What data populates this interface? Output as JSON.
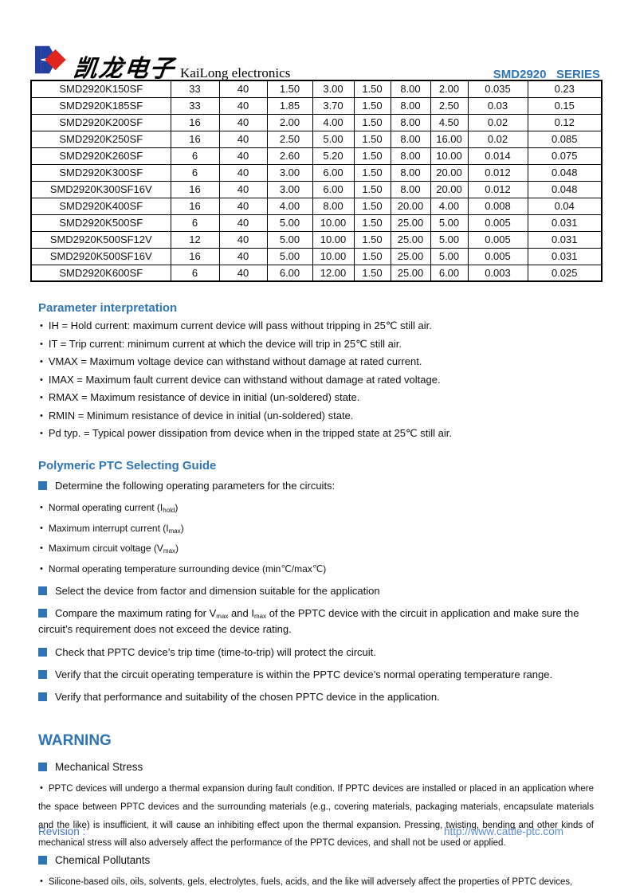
{
  "header": {
    "logo_chinese": "凯龙电子",
    "logo_english": "KaiLong electronics",
    "series_label": "SMD2920   SERIES",
    "brand_blue": "#243f9f",
    "brand_red": "#e1251b"
  },
  "table": {
    "rows": [
      [
        "SMD2920K150SF",
        "33",
        "40",
        "1.50",
        "3.00",
        "1.50",
        "8.00",
        "2.00",
        "0.035",
        "0.23"
      ],
      [
        "SMD2920K185SF",
        "33",
        "40",
        "1.85",
        "3.70",
        "1.50",
        "8.00",
        "2.50",
        "0.03",
        "0.15"
      ],
      [
        "SMD2920K200SF",
        "16",
        "40",
        "2.00",
        "4.00",
        "1.50",
        "8.00",
        "4.50",
        "0.02",
        "0.12"
      ],
      [
        "SMD2920K250SF",
        "16",
        "40",
        "2.50",
        "5.00",
        "1.50",
        "8.00",
        "16.00",
        "0.02",
        "0.085"
      ],
      [
        "SMD2920K260SF",
        "6",
        "40",
        "2.60",
        "5.20",
        "1.50",
        "8.00",
        "10.00",
        "0.014",
        "0.075"
      ],
      [
        "SMD2920K300SF",
        "6",
        "40",
        "3.00",
        "6.00",
        "1.50",
        "8.00",
        "20.00",
        "0.012",
        "0.048"
      ],
      [
        "SMD2920K300SF16V",
        "16",
        "40",
        "3.00",
        "6.00",
        "1.50",
        "8.00",
        "20.00",
        "0.012",
        "0.048"
      ],
      [
        "SMD2920K400SF",
        "16",
        "40",
        "4.00",
        "8.00",
        "1.50",
        "20.00",
        "4.00",
        "0.008",
        "0.04"
      ],
      [
        "SMD2920K500SF",
        "6",
        "40",
        "5.00",
        "10.00",
        "1.50",
        "25.00",
        "5.00",
        "0.005",
        "0.031"
      ],
      [
        "SMD2920K500SF12V",
        "12",
        "40",
        "5.00",
        "10.00",
        "1.50",
        "25.00",
        "5.00",
        "0.005",
        "0.031"
      ],
      [
        "SMD2920K500SF16V",
        "16",
        "40",
        "5.00",
        "10.00",
        "1.50",
        "25.00",
        "5.00",
        "0.005",
        "0.031"
      ],
      [
        "SMD2920K600SF",
        "6",
        "40",
        "6.00",
        "12.00",
        "1.50",
        "25.00",
        "6.00",
        "0.003",
        "0.025"
      ]
    ]
  },
  "param_section": {
    "title": "Parameter interpretation",
    "items": [
      "IH = Hold current: maximum current device will pass without tripping in 25℃  still air.",
      "IT = Trip current: minimum current at which the device will trip in 25℃  still air.",
      "VMAX = Maximum voltage device can withstand without damage at rated current.",
      "IMAX = Maximum fault current device can withstand without damage at rated voltage.",
      "RMAX = Maximum resistance of device in initial (un-soldered) state.",
      "RMIN = Minimum resistance of device in initial (un-soldered) state.",
      "Pd typ. = Typical power dissipation from device when in the tripped state at 25℃  still air."
    ]
  },
  "guide_section": {
    "title": "Polymeric PTC Selecting Guide",
    "items": [
      {
        "type": "square",
        "segments": [
          {
            "t": "Determine the following operating parameters for the circuits:"
          }
        ]
      },
      {
        "type": "dot",
        "segments": [
          {
            "t": "Normal operating current (I"
          },
          {
            "sub": "hold"
          },
          {
            "t": ")"
          }
        ]
      },
      {
        "type": "dot",
        "segments": [
          {
            "t": "Maximum interrupt current (I"
          },
          {
            "sub": "max"
          },
          {
            "t": ")"
          }
        ]
      },
      {
        "type": "dot",
        "segments": [
          {
            "t": "Maximum circuit voltage (V"
          },
          {
            "sub": "max"
          },
          {
            "t": ")"
          }
        ]
      },
      {
        "type": "dot",
        "segments": [
          {
            "t": "Normal operating temperature surrounding device (min℃/max℃)"
          }
        ]
      },
      {
        "type": "square",
        "segments": [
          {
            "t": "Select the device from factor and dimension suitable for the application"
          }
        ]
      },
      {
        "type": "square",
        "segments": [
          {
            "t": "Compare the maximum rating for V"
          },
          {
            "sub": "max"
          },
          {
            "t": " and I"
          },
          {
            "sub": "max"
          },
          {
            "t": " of the PPTC device with the circuit in application and make sure the circuit’s requirement does not exceed the device rating."
          }
        ]
      },
      {
        "type": "square",
        "segments": [
          {
            "t": "Check that PPTC device’s trip time (time-to-trip) will protect the circuit."
          }
        ]
      },
      {
        "type": "square",
        "segments": [
          {
            "t": "Verify that the circuit operating temperature is within the PPTC device’s normal operating temperature range."
          }
        ]
      },
      {
        "type": "square",
        "segments": [
          {
            "t": "Verify that performance and suitability of the chosen PPTC device in the application."
          }
        ]
      }
    ]
  },
  "warning_section": {
    "title": "WARNING",
    "items": [
      {
        "type": "square",
        "text": "Mechanical Stress"
      },
      {
        "type": "para",
        "text": "PPTC devices will undergo a thermal expansion during fault condition. If PPTC devices are installed or placed in an application where the space between PPTC devices and the surrounding materials (e.g., covering materials, packaging materials, encapsulate materials and the like) is insufficient, it will cause an inhibiting effect upon the thermal expansion. Pressing, twisting, bending and other kinds of mechanical stress will also adversely affect the performance of the PPTC devices, and shall not be used or applied."
      },
      {
        "type": "square",
        "text": "Chemical Pollutants"
      },
      {
        "type": "para",
        "text": "Silicone-based oils, oils, solvents, gels, electrolytes, fuels, acids, and the like will adversely affect the properties of PPTC devices,"
      }
    ]
  },
  "footer": {
    "revision_label": "Revision :",
    "url": "http://www.cattle-ptc.com"
  }
}
